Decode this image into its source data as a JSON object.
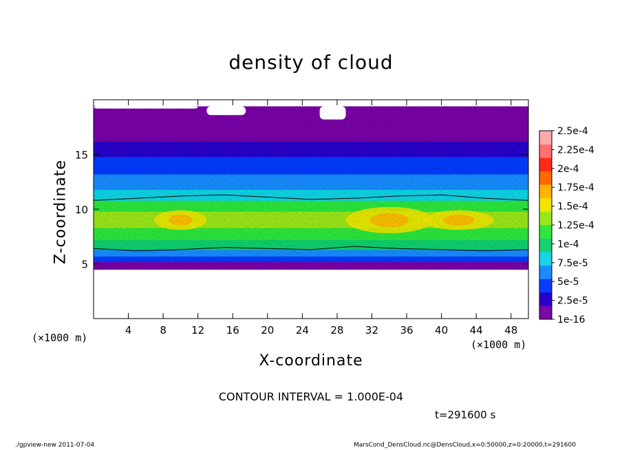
{
  "chart_data": {
    "type": "heatmap",
    "title": "density of cloud",
    "xlabel": "X-coordinate",
    "ylabel": "Z-coordinate",
    "x_unit": "(×1000 m)",
    "y_unit": "(×1000 m)",
    "xlim": [
      0,
      50
    ],
    "ylim": [
      0,
      20
    ],
    "x_ticks": [
      4,
      8,
      12,
      16,
      20,
      24,
      28,
      32,
      36,
      40,
      44,
      48
    ],
    "y_ticks": [
      5,
      10,
      15
    ],
    "colorbar": {
      "labels": [
        "1e-16",
        "2.5e-5",
        "5e-5",
        "7.5e-5",
        "1e-4",
        "1.25e-4",
        "1.5e-4",
        "1.75e-4",
        "2e-4",
        "2.25e-4",
        "2.5e-4"
      ],
      "colors": [
        "#7a0aa8",
        "#2a00cc",
        "#0a3cff",
        "#1a8cff",
        "#18d4e6",
        "#18d070",
        "#2ee63c",
        "#9ae61e",
        "#f2e600",
        "#ffb400",
        "#ff6a00",
        "#ff2a1a",
        "#ff7070",
        "#ffaaaa"
      ]
    },
    "contour_interval": "CONTOUR INTERVAL = 1.000E-04",
    "bands": [
      {
        "z_from": 4.5,
        "z_to": 5.2,
        "level": 0
      },
      {
        "z_from": 5.2,
        "z_to": 5.7,
        "level": 2
      },
      {
        "z_from": 5.7,
        "z_to": 6.3,
        "level": 3
      },
      {
        "z_from": 6.3,
        "z_to": 7.2,
        "level": 5
      },
      {
        "z_from": 7.2,
        "z_to": 8.3,
        "level": 6
      },
      {
        "z_from": 8.3,
        "z_to": 9.8,
        "level": 7
      },
      {
        "z_from": 9.8,
        "z_to": 10.8,
        "level": 6
      },
      {
        "z_from": 10.8,
        "z_to": 11.8,
        "level": 4
      },
      {
        "z_from": 11.8,
        "z_to": 13.2,
        "level": 3
      },
      {
        "z_from": 13.2,
        "z_to": 14.8,
        "level": 2
      },
      {
        "z_from": 14.8,
        "z_to": 16.2,
        "level": 1
      },
      {
        "z_from": 16.2,
        "z_to": 17.6,
        "level": 0
      },
      {
        "z_from": 17.6,
        "z_to": 19.4,
        "level": 0
      }
    ],
    "hotspots": [
      {
        "x": 34,
        "z": 9.0,
        "rx": 5,
        "rz": 1.2,
        "level": 8
      },
      {
        "x": 10,
        "z": 9.0,
        "rx": 3,
        "rz": 0.9,
        "level": 8
      },
      {
        "x": 42,
        "z": 9.0,
        "rx": 4,
        "rz": 0.9,
        "level": 8
      }
    ],
    "contours": [
      {
        "label": "1e-4 upper",
        "x": [
          0,
          5,
          10,
          15,
          20,
          25,
          30,
          35,
          40,
          45,
          50
        ],
        "z": [
          10.8,
          11.0,
          11.2,
          11.3,
          11.1,
          10.9,
          11.0,
          11.2,
          11.3,
          11.0,
          10.8
        ]
      },
      {
        "label": "1e-4 lower",
        "x": [
          0,
          5,
          10,
          15,
          20,
          25,
          30,
          35,
          40,
          45,
          50
        ],
        "z": [
          6.4,
          6.2,
          6.3,
          6.5,
          6.4,
          6.3,
          6.6,
          6.4,
          6.3,
          6.2,
          6.3
        ]
      }
    ],
    "gaps": [
      {
        "x_from": 13,
        "x_to": 17.5,
        "z_from": 18.6,
        "z_to": 19.4
      },
      {
        "x_from": 26,
        "x_to": 29,
        "z_from": 18.2,
        "z_to": 19.4
      },
      {
        "x_from": 0,
        "x_to": 12,
        "z_from": 19.2,
        "z_to": 19.4
      }
    ]
  },
  "footer": {
    "contour": "CONTOUR INTERVAL = 1.000E-04",
    "time": "t=291600  s",
    "program": "./gpview-new  2011-07-04",
    "source": "MarsCond_DensCloud.nc@DensCloud,x=0:50000,z=0:20000,t=291600"
  }
}
